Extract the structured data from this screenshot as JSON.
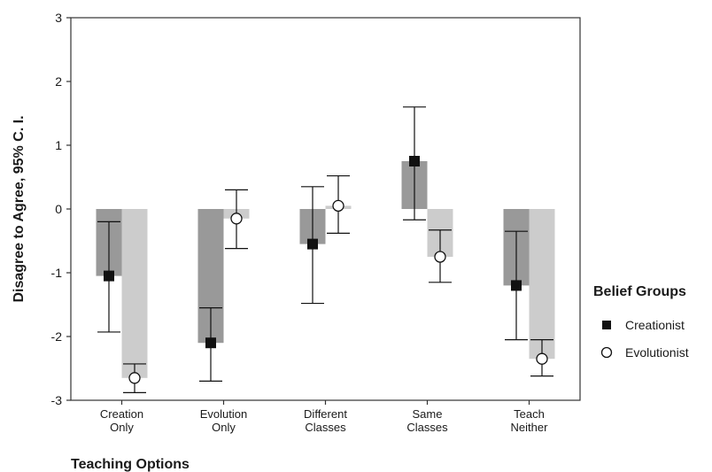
{
  "chart_data": {
    "type": "bar",
    "ylabel": "Disagree to Agree, 95% C. I.",
    "xlabel": "Teaching Options",
    "ylim": [
      -3,
      3
    ],
    "yticks": [
      -3,
      -2,
      -1,
      0,
      1,
      2,
      3
    ],
    "categories": [
      [
        "Creation",
        "Only"
      ],
      [
        "Evolution",
        "Only"
      ],
      [
        "Different",
        "Classes"
      ],
      [
        "Same",
        "Classes"
      ],
      [
        "Teach",
        "Neither"
      ]
    ],
    "legend_title": "Belief Groups",
    "legend_position": "right",
    "grid": false,
    "series": [
      {
        "name": "Creationist",
        "marker": "filled-square",
        "bar_color": "#999999",
        "values": [
          -1.05,
          -2.1,
          -0.55,
          0.75,
          -1.2
        ],
        "ci_low": [
          -1.93,
          -2.7,
          -1.48,
          -0.17,
          -2.05
        ],
        "ci_high": [
          -0.2,
          -1.55,
          0.35,
          1.6,
          -0.35
        ]
      },
      {
        "name": "Evolutionist",
        "marker": "open-circle",
        "bar_color": "#cccccc",
        "values": [
          -2.65,
          -0.15,
          0.05,
          -0.75,
          -2.35
        ],
        "ci_low": [
          -2.88,
          -0.62,
          -0.38,
          -1.15,
          -2.62
        ],
        "ci_high": [
          -2.43,
          0.3,
          0.52,
          -0.33,
          -2.05
        ]
      }
    ]
  }
}
